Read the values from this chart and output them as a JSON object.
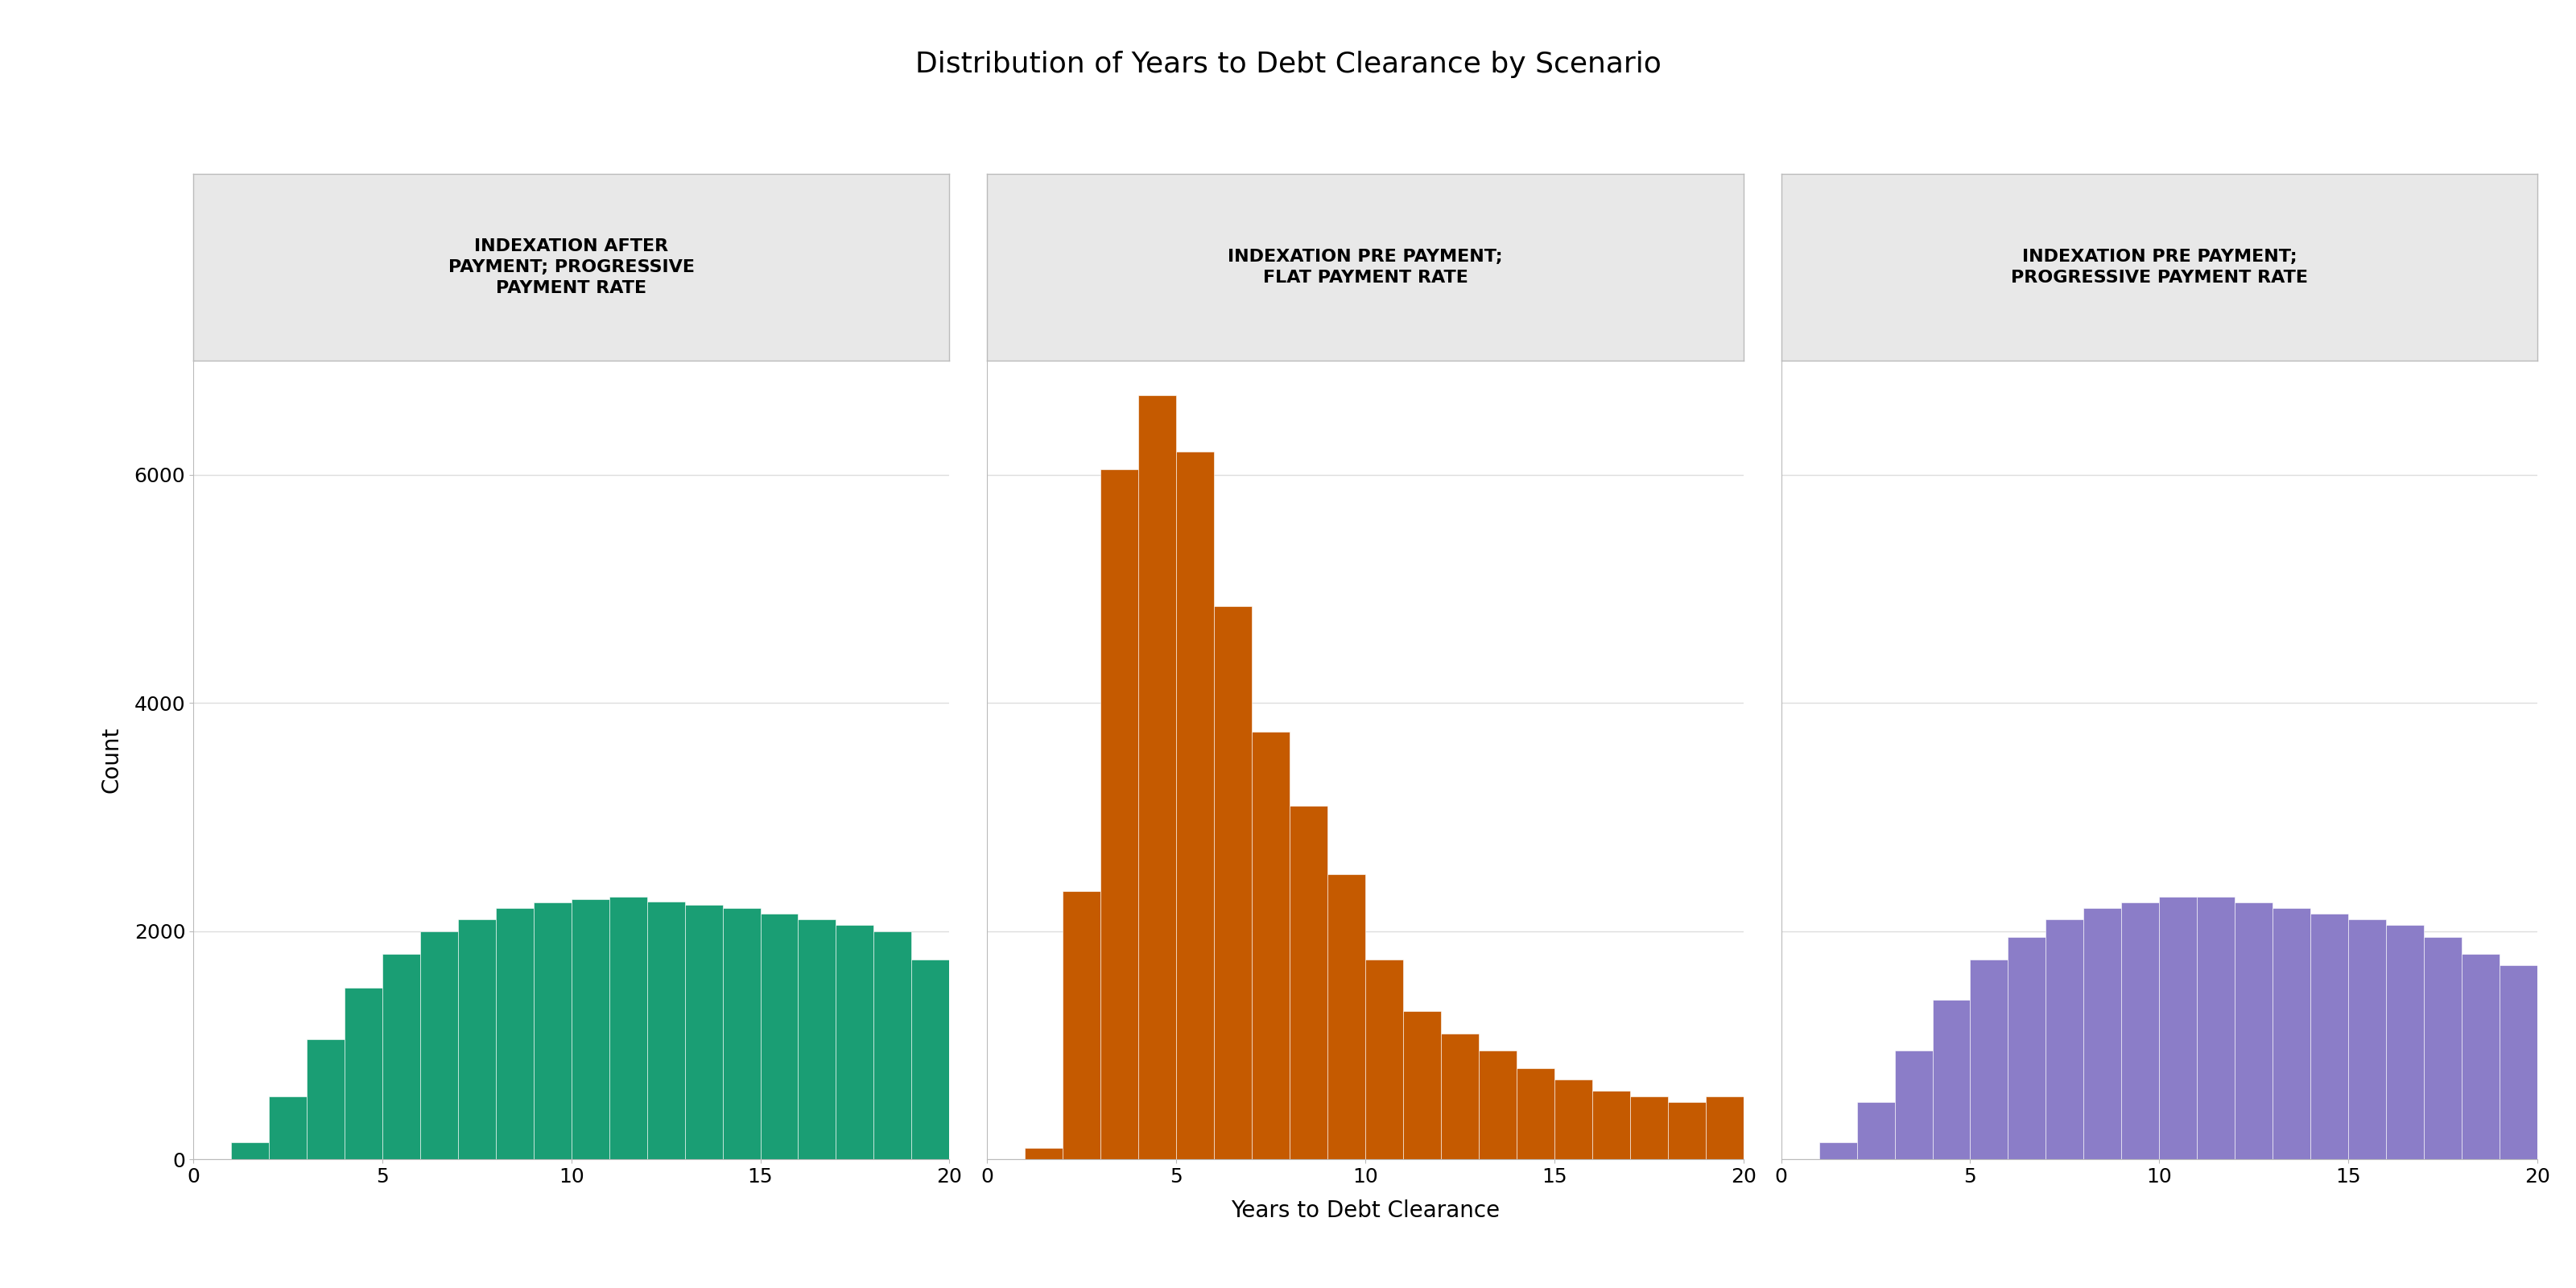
{
  "title": "Distribution of Years to Debt Clearance by Scenario",
  "xlabel": "Years to Debt Clearance",
  "ylabel": "Count",
  "strip_labels": [
    "INDEXATION AFTER\nPAYMENT; PROGRESSIVE\nPAYMENT RATE",
    "INDEXATION PRE PAYMENT;\nFLAT PAYMENT RATE",
    "INDEXATION PRE PAYMENT;\nPROGRESSIVE PAYMENT RATE"
  ],
  "colors": [
    "#1a9e74",
    "#c55a00",
    "#8b7dc8"
  ],
  "ylim": [
    0,
    7000
  ],
  "xlim": [
    0,
    20
  ],
  "yticks": [
    0,
    2000,
    4000,
    6000
  ],
  "xticks": [
    0,
    5,
    10,
    15,
    20
  ],
  "background_color": "#ffffff",
  "strip_bg": "#e8e8e8",
  "plot_bg": "#ffffff",
  "title_fontsize": 26,
  "label_fontsize": 20,
  "tick_fontsize": 18,
  "strip_fontsize": 16,
  "panel1_heights": [
    150,
    550,
    1050,
    1500,
    1800,
    2000,
    2100,
    2200,
    2250,
    2280,
    2300,
    2260,
    2230,
    2200,
    2150,
    2100,
    2050,
    2000,
    1750
  ],
  "panel2_heights": [
    100,
    2350,
    6050,
    6700,
    6200,
    4850,
    3750,
    3100,
    2500,
    1750,
    1300,
    1100,
    950,
    800,
    700,
    600,
    550,
    500,
    550
  ],
  "panel3_heights": [
    150,
    500,
    950,
    1400,
    1750,
    1950,
    2100,
    2200,
    2250,
    2300,
    2300,
    2250,
    2200,
    2150,
    2100,
    2050,
    1950,
    1800,
    1700
  ],
  "bin_starts": [
    1,
    2,
    3,
    4,
    5,
    6,
    7,
    8,
    9,
    10,
    11,
    12,
    13,
    14,
    15,
    16,
    17,
    18,
    19
  ]
}
